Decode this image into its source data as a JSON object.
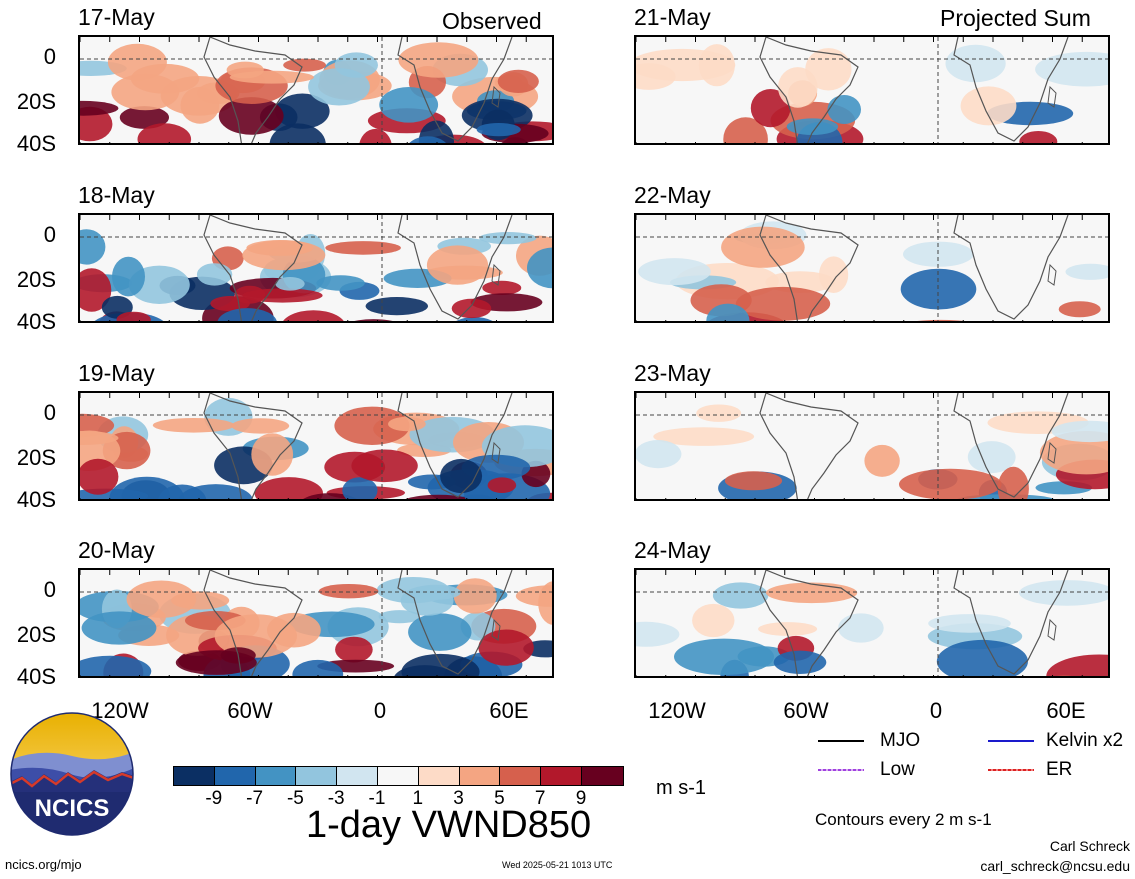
{
  "header": {
    "left_title": "Observed",
    "right_title": "Projected Sum"
  },
  "panels": {
    "observed": [
      {
        "date": "17-May"
      },
      {
        "date": "18-May"
      },
      {
        "date": "19-May"
      },
      {
        "date": "20-May"
      }
    ],
    "projected": [
      {
        "date": "21-May"
      },
      {
        "date": "22-May"
      },
      {
        "date": "23-May"
      },
      {
        "date": "24-May"
      }
    ]
  },
  "axes": {
    "y_ticks": [
      "0",
      "20S",
      "40S"
    ],
    "x_ticks": [
      "120W",
      "60W",
      "0",
      "60E"
    ]
  },
  "colorbar": {
    "ticks": [
      "-9",
      "-7",
      "-5",
      "-3",
      "-1",
      "1",
      "3",
      "5",
      "7",
      "9"
    ],
    "colors": [
      "#0b2f63",
      "#2166ac",
      "#4393c3",
      "#92c5de",
      "#d1e5f0",
      "#f7f7f7",
      "#fddbc7",
      "#f4a582",
      "#d6604d",
      "#b2182b",
      "#67001f"
    ],
    "units": "m s-1"
  },
  "title": "1-day VWND850",
  "legend": {
    "items": [
      {
        "label": "MJO",
        "color": "#000000"
      },
      {
        "label": "Kelvin x2",
        "color": "#1a1acc"
      },
      {
        "label": "Low",
        "color": "#a040e0"
      },
      {
        "label": "ER",
        "color": "#dd2222"
      }
    ],
    "contours_note": "Contours every 2 m s-1"
  },
  "credits": {
    "author": "Carl Schreck",
    "email": "carl_schreck@ncsu.edu",
    "site": "ncics.org/mjo",
    "timestamp": "Wed 2025-05-21 1013 UTC",
    "logo_text": "NCICS"
  }
}
